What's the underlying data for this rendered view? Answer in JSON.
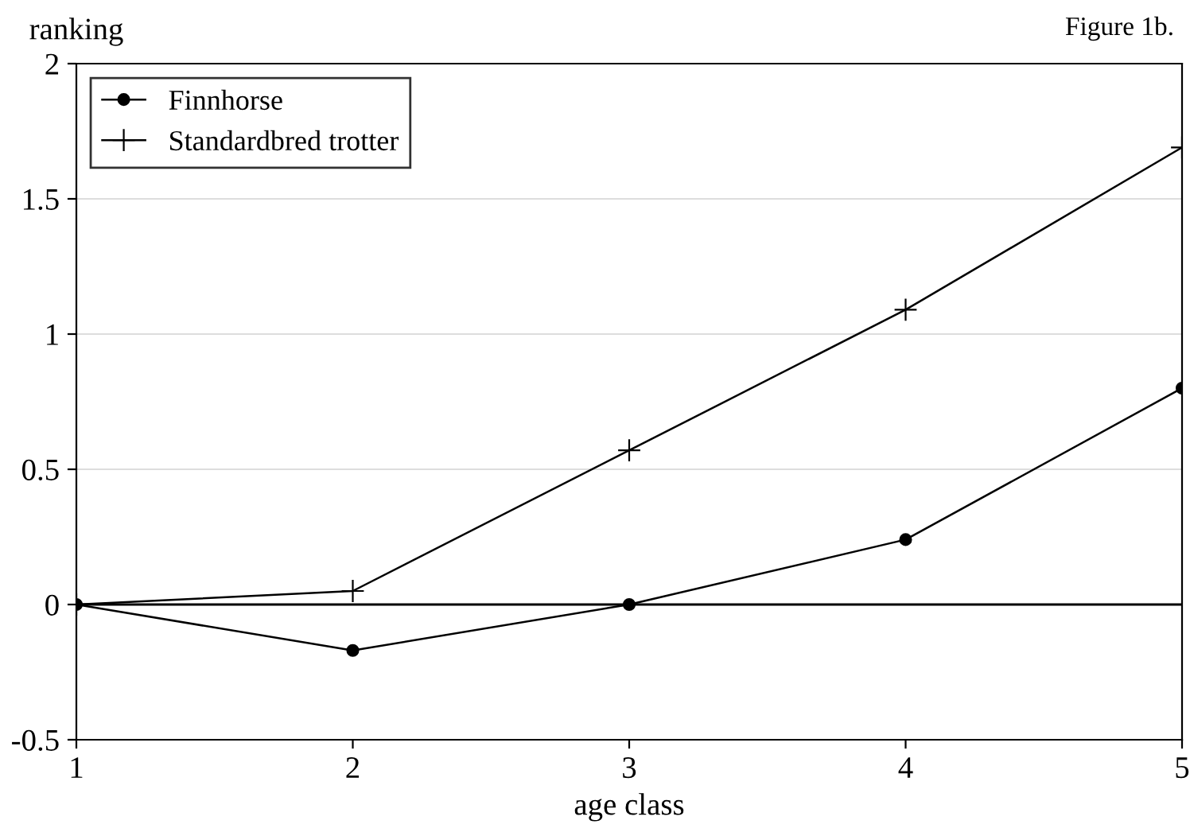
{
  "chart_data": {
    "type": "line",
    "ylabel": "ranking",
    "xlabel": "age class",
    "annotations": [
      "Figure 1b."
    ],
    "x": [
      1,
      2,
      3,
      4,
      5
    ],
    "series": [
      {
        "name": "Finnhorse",
        "color": "#000000",
        "marker": "circle",
        "values": [
          0,
          -0.17,
          0,
          0.24,
          0.8
        ]
      },
      {
        "name": "Standardbred trotter",
        "color": "#000000",
        "marker": "cross",
        "values": [
          0,
          0.05,
          0.57,
          1.09,
          1.69
        ]
      }
    ],
    "xlim": [
      1,
      5
    ],
    "xticks": [
      1,
      2,
      3,
      4,
      5
    ],
    "ylim": [
      -0.5,
      2
    ],
    "yticks": [
      {
        "value": -0.5,
        "label": "-0.5"
      },
      0,
      0.5,
      1,
      1.5,
      2
    ],
    "ref_lines": [
      {
        "axis": "y",
        "value": 0,
        "color": "#000000"
      }
    ],
    "grid": "y",
    "legend": "top left",
    "line_style": "solid"
  }
}
